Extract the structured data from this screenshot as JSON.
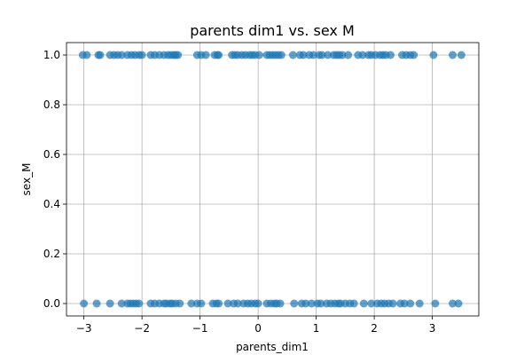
{
  "chart_data": {
    "type": "scatter",
    "title": "parents dim1 vs. sex M",
    "xlabel": "parents_dim1",
    "ylabel": "sex_M",
    "xlim": [
      -3.3,
      3.8
    ],
    "ylim": [
      -0.05,
      1.05
    ],
    "xticks": [
      -3,
      -2,
      -1,
      0,
      1,
      2,
      3
    ],
    "yticks": [
      0.0,
      0.2,
      0.4,
      0.6,
      0.8,
      1.0
    ],
    "xtick_labels": [
      "−3",
      "−2",
      "−1",
      "0",
      "1",
      "2",
      "3"
    ],
    "ytick_labels": [
      "0.0",
      "0.2",
      "0.4",
      "0.6",
      "0.8",
      "1.0"
    ],
    "grid": true,
    "marker_color": "#1f77b4",
    "marker_alpha": 0.7,
    "series": [
      {
        "x": [
          -3.02,
          -2.95,
          -2.75,
          -2.72,
          -2.55,
          -2.48,
          -2.42,
          -2.35,
          -2.25,
          -2.18,
          -2.12,
          -2.05,
          -2.0,
          -1.85,
          -1.78,
          -1.7,
          -1.62,
          -1.55,
          -1.5,
          -1.45,
          -1.42,
          -1.38,
          -1.05,
          -0.98,
          -0.9,
          -0.75,
          -0.7,
          -0.68,
          -0.45,
          -0.4,
          -0.35,
          -0.28,
          -0.22,
          -0.15,
          -0.1,
          -0.05,
          0.02,
          0.15,
          0.2,
          0.25,
          0.3,
          0.35,
          0.4,
          0.6,
          0.72,
          0.78,
          0.88,
          0.95,
          1.05,
          1.1,
          1.2,
          1.3,
          1.35,
          1.4,
          1.45,
          1.55,
          1.72,
          1.8,
          1.9,
          1.95,
          2.02,
          2.1,
          2.15,
          2.2,
          2.28,
          2.48,
          2.55,
          2.62,
          2.68,
          3.02,
          3.35,
          3.5
        ],
        "y": [
          1,
          1,
          1,
          1,
          1,
          1,
          1,
          1,
          1,
          1,
          1,
          1,
          1,
          1,
          1,
          1,
          1,
          1,
          1,
          1,
          1,
          1,
          1,
          1,
          1,
          1,
          1,
          1,
          1,
          1,
          1,
          1,
          1,
          1,
          1,
          1,
          1,
          1,
          1,
          1,
          1,
          1,
          1,
          1,
          1,
          1,
          1,
          1,
          1,
          1,
          1,
          1,
          1,
          1,
          1,
          1,
          1,
          1,
          1,
          1,
          1,
          1,
          1,
          1,
          1,
          1,
          1,
          1,
          1,
          1,
          1,
          1
        ]
      },
      {
        "x": [
          -3.0,
          -2.78,
          -2.55,
          -2.35,
          -2.25,
          -2.2,
          -2.15,
          -2.1,
          -2.05,
          -1.85,
          -1.78,
          -1.7,
          -1.62,
          -1.58,
          -1.52,
          -1.48,
          -1.42,
          -1.35,
          -1.15,
          -1.05,
          -0.98,
          -0.78,
          -0.72,
          -0.68,
          -0.52,
          -0.42,
          -0.35,
          -0.25,
          -0.18,
          -0.12,
          -0.05,
          0.0,
          0.15,
          0.22,
          0.28,
          0.32,
          0.38,
          0.62,
          0.75,
          0.82,
          0.92,
          1.02,
          1.08,
          1.18,
          1.25,
          1.32,
          1.38,
          1.42,
          1.5,
          1.58,
          1.65,
          1.82,
          1.95,
          2.05,
          2.12,
          2.18,
          2.25,
          2.32,
          2.45,
          2.52,
          2.62,
          2.78,
          3.05,
          3.35,
          3.45
        ],
        "y": [
          0,
          0,
          0,
          0,
          0,
          0,
          0,
          0,
          0,
          0,
          0,
          0,
          0,
          0,
          0,
          0,
          0,
          0,
          0,
          0,
          0,
          0,
          0,
          0,
          0,
          0,
          0,
          0,
          0,
          0,
          0,
          0,
          0,
          0,
          0,
          0,
          0,
          0,
          0,
          0,
          0,
          0,
          0,
          0,
          0,
          0,
          0,
          0,
          0,
          0,
          0,
          0,
          0,
          0,
          0,
          0,
          0,
          0,
          0,
          0,
          0,
          0,
          0,
          0,
          0
        ]
      }
    ]
  }
}
